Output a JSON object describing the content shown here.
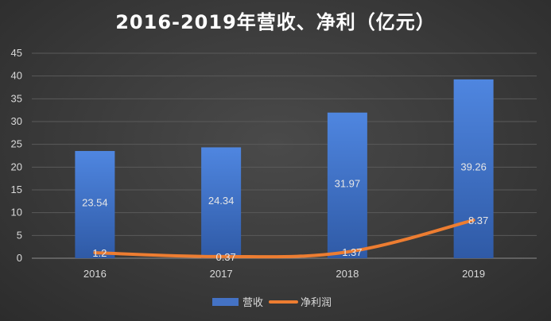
{
  "chart_data": {
    "type": "bar",
    "title": "2016-2019年营收、净利（亿元）",
    "categories": [
      "2016",
      "2017",
      "2018",
      "2019"
    ],
    "series": [
      {
        "name": "营收",
        "type": "bar",
        "color": "#4472C4",
        "values": [
          23.54,
          24.34,
          31.97,
          39.26
        ]
      },
      {
        "name": "净利润",
        "type": "line",
        "color": "#ED7D31",
        "values": [
          1.2,
          0.37,
          1.37,
          8.37
        ]
      }
    ],
    "ylim": [
      0,
      45
    ],
    "yticks": [
      0,
      5,
      10,
      15,
      20,
      25,
      30,
      35,
      40,
      45
    ],
    "grid": true,
    "legend_position": "bottom",
    "background": "#3f3f3f"
  }
}
